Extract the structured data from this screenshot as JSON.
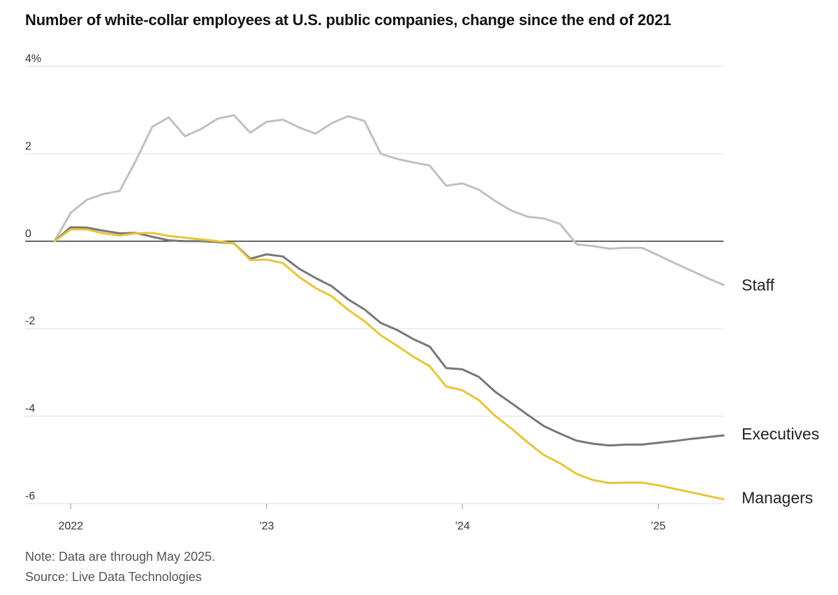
{
  "title": "Number of white-collar employees at U.S. public companies, change since the end of 2021",
  "note": "Note: Data are through May 2025.",
  "source": "Source: Live Data Technologies",
  "colors": {
    "Staff": "#c0c0c0",
    "Executives": "#777777",
    "Managers": "#e8c43a",
    "zero_line": "#222222",
    "grid": "#dddddd"
  },
  "chart_data": {
    "type": "line",
    "ylim": [
      -6,
      4
    ],
    "xlim": [
      "2021-12",
      "2025-05"
    ],
    "y_ticks": [
      {
        "value": 4,
        "label": "4%"
      },
      {
        "value": 2,
        "label": "2"
      },
      {
        "value": 0,
        "label": "0"
      },
      {
        "value": -2,
        "label": "-2"
      },
      {
        "value": -4,
        "label": "-4"
      },
      {
        "value": -6,
        "label": "-6"
      }
    ],
    "x_ticks": [
      {
        "value": "2022-01",
        "label": "2022"
      },
      {
        "value": "2023-01",
        "label": "’23"
      },
      {
        "value": "2024-01",
        "label": "’24"
      },
      {
        "value": "2025-01",
        "label": "’25"
      }
    ],
    "grid": true,
    "legend": "direct labels at right",
    "x": [
      "2021-12",
      "2022-01",
      "2022-02",
      "2022-03",
      "2022-04",
      "2022-05",
      "2022-06",
      "2022-07",
      "2022-08",
      "2022-09",
      "2022-10",
      "2022-11",
      "2022-12",
      "2023-01",
      "2023-02",
      "2023-03",
      "2023-04",
      "2023-05",
      "2023-06",
      "2023-07",
      "2023-08",
      "2023-09",
      "2023-10",
      "2023-11",
      "2023-12",
      "2024-01",
      "2024-02",
      "2024-03",
      "2024-04",
      "2024-05",
      "2024-06",
      "2024-07",
      "2024-08",
      "2024-09",
      "2024-10",
      "2024-11",
      "2024-12",
      "2025-01",
      "2025-02",
      "2025-03",
      "2025-04",
      "2025-05"
    ],
    "series": [
      {
        "name": "Staff",
        "values": [
          0,
          0.65,
          0.95,
          1.08,
          1.15,
          1.85,
          2.62,
          2.83,
          2.4,
          2.57,
          2.8,
          2.88,
          2.48,
          2.73,
          2.78,
          2.6,
          2.46,
          2.7,
          2.86,
          2.75,
          2.0,
          1.88,
          1.8,
          1.73,
          1.27,
          1.32,
          1.18,
          0.92,
          0.7,
          0.56,
          0.52,
          0.39,
          -0.07,
          -0.11,
          -0.17,
          -0.15,
          -0.15,
          -0.32,
          -0.5,
          -0.67,
          -0.84,
          -1.0
        ]
      },
      {
        "name": "Executives",
        "values": [
          0,
          0.32,
          0.31,
          0.24,
          0.18,
          0.19,
          0.1,
          0.02,
          0.0,
          0.0,
          -0.02,
          -0.05,
          -0.4,
          -0.3,
          -0.35,
          -0.63,
          -0.84,
          -1.03,
          -1.33,
          -1.56,
          -1.87,
          -2.03,
          -2.24,
          -2.41,
          -2.9,
          -2.93,
          -3.1,
          -3.44,
          -3.7,
          -3.97,
          -4.23,
          -4.4,
          -4.56,
          -4.63,
          -4.67,
          -4.65,
          -4.65,
          -4.61,
          -4.57,
          -4.52,
          -4.48,
          -4.44
        ]
      },
      {
        "name": "Managers",
        "values": [
          0,
          0.27,
          0.27,
          0.18,
          0.13,
          0.18,
          0.19,
          0.12,
          0.08,
          0.04,
          0.0,
          -0.05,
          -0.43,
          -0.42,
          -0.5,
          -0.82,
          -1.07,
          -1.26,
          -1.57,
          -1.83,
          -2.15,
          -2.39,
          -2.64,
          -2.86,
          -3.32,
          -3.41,
          -3.63,
          -3.99,
          -4.28,
          -4.6,
          -4.89,
          -5.08,
          -5.32,
          -5.46,
          -5.53,
          -5.52,
          -5.52,
          -5.58,
          -5.66,
          -5.74,
          -5.82,
          -5.9
        ]
      }
    ]
  }
}
